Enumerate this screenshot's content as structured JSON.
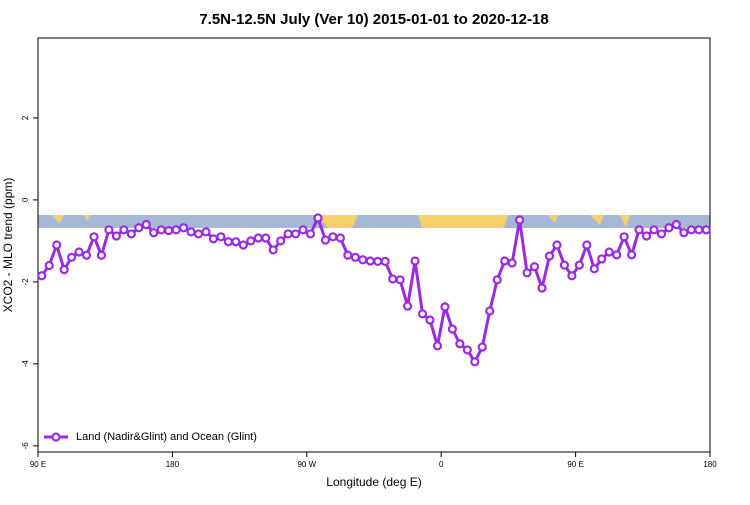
{
  "chart_data": {
    "type": "line",
    "title": "7.5N-12.5N July (Ver 10)   2015-01-01 to 2020-12-18",
    "x_label": "Longitude (deg E)",
    "y_label": "XCO2 - MLO trend (ppm)",
    "xlim": [
      90,
      540
    ],
    "xticks": [
      {
        "value": 90,
        "label": "90 E"
      },
      {
        "value": 180,
        "label": "180"
      },
      {
        "value": 270,
        "label": "90 W"
      },
      {
        "value": 360,
        "label": "0"
      },
      {
        "value": 450,
        "label": "90 E"
      },
      {
        "value": 540,
        "label": "180"
      }
    ],
    "ylim": [
      -6.15,
      3.95
    ],
    "yticks": [
      -6,
      -4,
      -2,
      0,
      2
    ],
    "legend": "lower left",
    "x": [
      92.5,
      97.5,
      102.5,
      107.5,
      112.5,
      117.5,
      122.5,
      127.5,
      132.5,
      137.5,
      142.5,
      147.5,
      152.5,
      157.5,
      162.5,
      167.5,
      172.5,
      177.5,
      182.5,
      187.5,
      192.5,
      197.5,
      202.5,
      207.5,
      212.5,
      217.5,
      222.5,
      227.5,
      232.5,
      237.5,
      242.5,
      247.5,
      252.5,
      257.5,
      262.5,
      267.5,
      272.5,
      277.5,
      282.5,
      287.5,
      292.5,
      297.5,
      302.5,
      307.5,
      312.5,
      317.5,
      322.5,
      327.5,
      332.5,
      337.5,
      342.5,
      347.5,
      352.5,
      357.5,
      362.5,
      367.5,
      372.5,
      377.5,
      382.5,
      387.5,
      392.5,
      397.5,
      402.5,
      407.5,
      412.5,
      417.5,
      422.5,
      427.5,
      432.5,
      437.5,
      442.5,
      447.5,
      452.5,
      457.5,
      462.5,
      467.5,
      472.5,
      477.5,
      482.5,
      487.5,
      492.5,
      497.5,
      502.5,
      507.5,
      512.5,
      517.5,
      522.5,
      527.5,
      532.5,
      537.5
    ],
    "series": [
      {
        "name": "Land (Nadir&Glint) and Ocean (Glint)",
        "color": "#9a2be2",
        "values": [
          -1.85,
          -1.6,
          -1.1,
          -1.7,
          -1.4,
          -1.27,
          -1.35,
          -0.9,
          -1.35,
          -0.73,
          -0.88,
          -0.73,
          -0.83,
          -0.68,
          -0.6,
          -0.8,
          -0.73,
          -0.75,
          -0.73,
          -0.68,
          -0.78,
          -0.83,
          -0.78,
          -0.95,
          -0.9,
          -1.02,
          -1.02,
          -1.1,
          -1.0,
          -0.93,
          -0.93,
          -1.22,
          -1.0,
          -0.83,
          -0.83,
          -0.73,
          -0.83,
          -0.44,
          -0.98,
          -0.9,
          -0.93,
          -1.35,
          -1.4,
          -1.46,
          -1.49,
          -1.5,
          -1.5,
          -1.93,
          -1.95,
          -2.59,
          -1.49,
          -2.78,
          -2.93,
          -3.56,
          -2.61,
          -3.15,
          -3.51,
          -3.66,
          -3.95,
          -3.59,
          -2.71,
          -1.95,
          -1.49,
          -1.54,
          -0.49,
          -1.78,
          -1.63,
          -2.15,
          -1.37,
          -1.1,
          -1.59,
          -1.85,
          -1.59,
          -1.1,
          -1.68,
          -1.44,
          -1.27,
          -1.34,
          -0.9,
          -1.34,
          -0.73,
          -0.88,
          -0.73,
          -0.83,
          -0.68,
          -0.6,
          -0.8,
          -0.73,
          -0.73,
          -0.73
        ]
      }
    ]
  }
}
